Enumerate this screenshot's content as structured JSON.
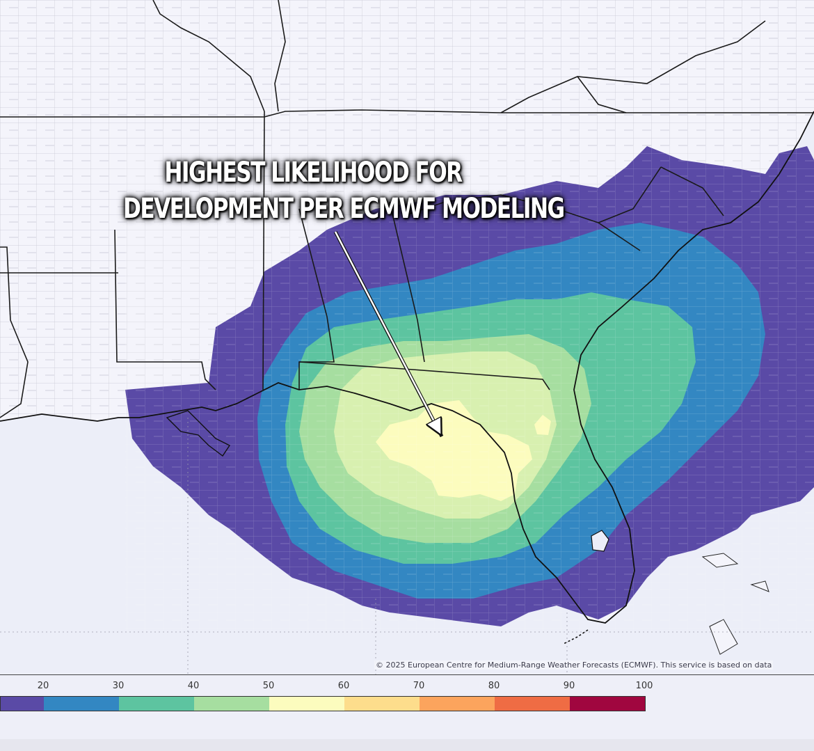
{
  "annotation": {
    "line1": "HIGHEST LIKELIHOOD FOR",
    "line2": "DEVELOPMENT PER ECMWF MODELING"
  },
  "copyright": "© 2025 European Centre for Medium-Range Weather Forecasts (ECMWF). This service is based on data",
  "legend": {
    "ticks": [
      "20",
      "30",
      "40",
      "50",
      "60",
      "70",
      "80",
      "90",
      "100"
    ],
    "colors": [
      "#5a4aa6",
      "#3387c2",
      "#5dc4a0",
      "#a6dea0",
      "#fcfcbe",
      "#fddd8c",
      "#fca45d",
      "#ef6c44",
      "#a0063f"
    ]
  },
  "map": {
    "region": "Southeastern United States and Gulf of Mexico",
    "land_color": "#f4f4fb",
    "water_color": "#eceef8"
  }
}
